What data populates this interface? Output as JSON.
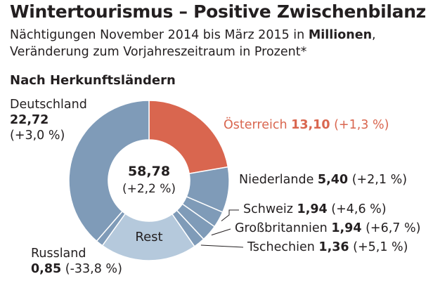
{
  "title": "Wintertourismus – Positive Zwischenbilanz",
  "subtitle": {
    "line1_prefix": "Nächtigungen November 2014 bis März 2015 in",
    "line1_bold": "Millionen",
    "line1_suffix": ",",
    "line2": "Veränderung zum Vorjahreszeitraum in Prozent*"
  },
  "section_title": "Nach Herkunftsländern",
  "center": {
    "total": "58,78",
    "change": "(+2,2 %)"
  },
  "colors": {
    "austria": "#d9664f",
    "countries": "#7f9bb8",
    "rest": "#b5c9dc",
    "separator": "#ffffff",
    "leader": "#231f20"
  },
  "chart_data": {
    "type": "pie",
    "donut": true,
    "unit": "Millionen",
    "total": 58.78,
    "total_change_pct": 2.2,
    "slices": [
      {
        "name": "Österreich",
        "value": 13.1,
        "value_label": "13,10",
        "change": "(+1,3 %)"
      },
      {
        "name": "Niederlande",
        "value": 5.4,
        "value_label": "5,40",
        "change": "(+2,1 %)"
      },
      {
        "name": "Schweiz",
        "value": 1.94,
        "value_label": "1,94",
        "change": "(+4,6 %)"
      },
      {
        "name": "Großbritannien",
        "value": 1.94,
        "value_label": "1,94",
        "change": "(+6,7 %)"
      },
      {
        "name": "Tschechien",
        "value": 1.36,
        "value_label": "1,36",
        "change": "(+5,1 %)"
      },
      {
        "name": "Rest",
        "value": 11.47
      },
      {
        "name": "Russland",
        "value": 0.85,
        "value_label": "0,85",
        "change": "(-33,8 %)"
      },
      {
        "name": "Deutschland",
        "value": 22.72,
        "value_label": "22,72",
        "change": "(+3,0 %)"
      }
    ]
  }
}
